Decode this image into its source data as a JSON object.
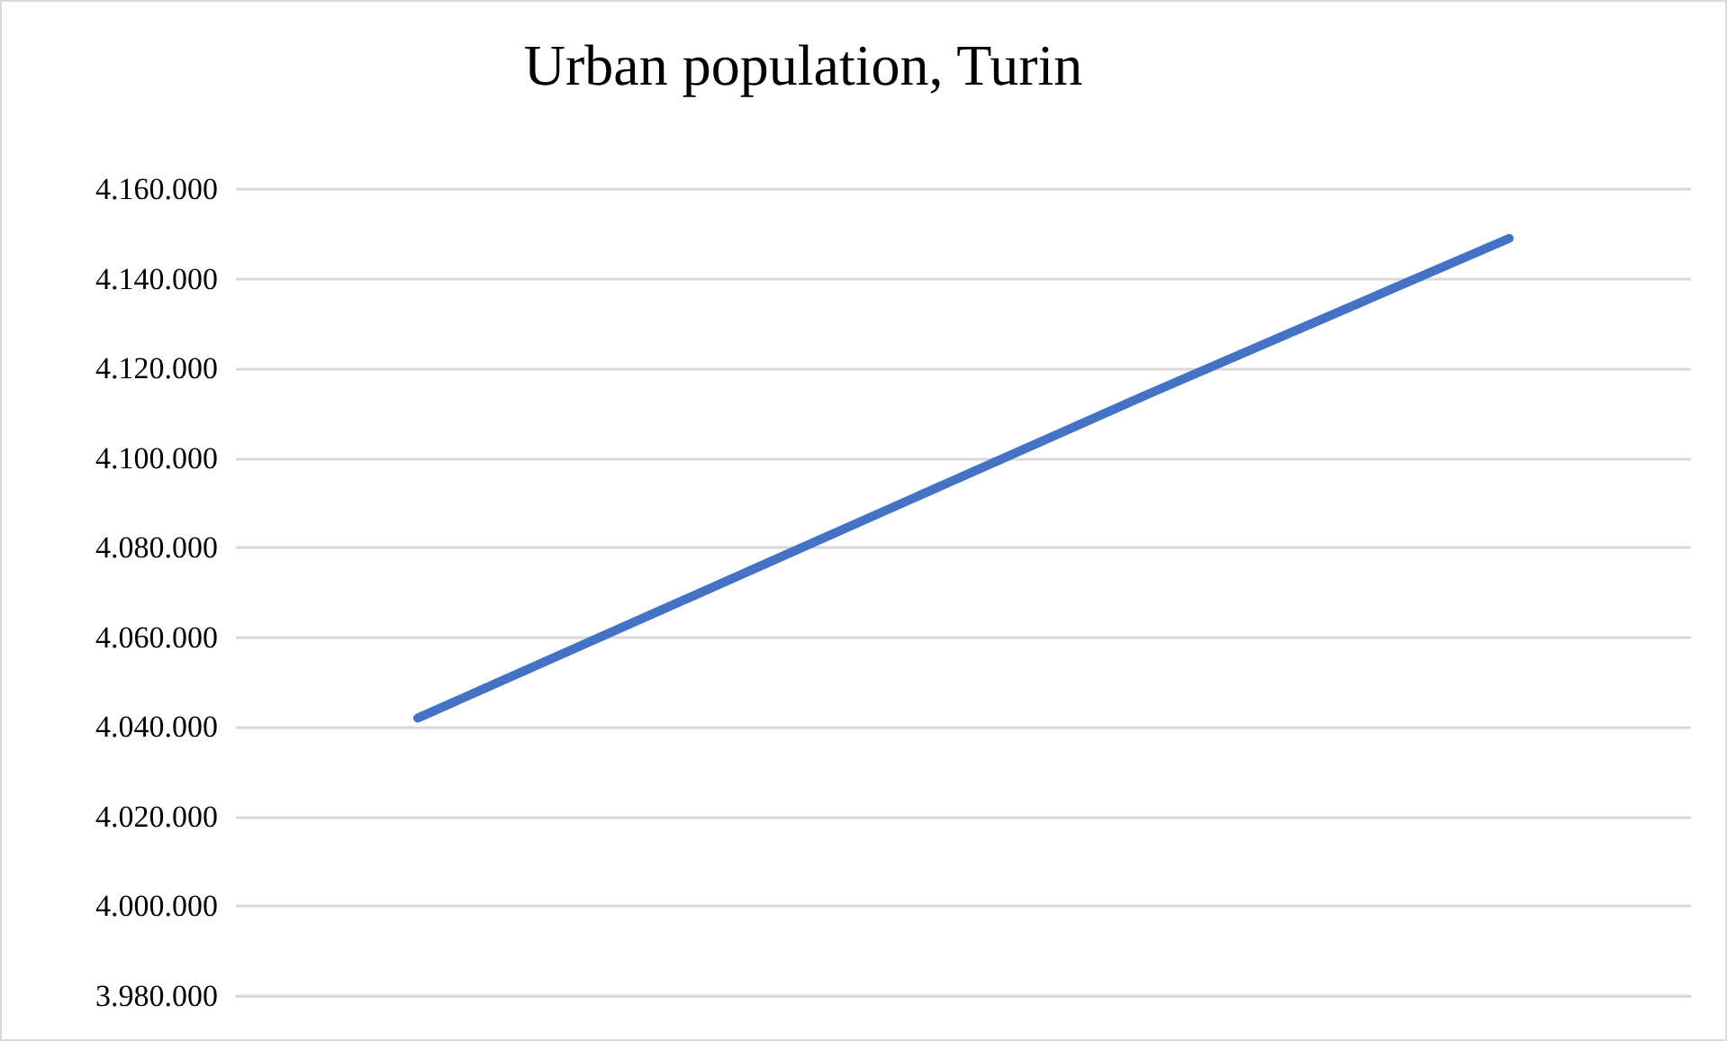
{
  "chart_data": {
    "type": "line",
    "title": "Urban population, Turin",
    "categories": [
      null,
      null,
      null,
      null
    ],
    "series": [
      {
        "color": "#4472c4",
        "values": [
          4042000,
          4078000,
          4114000,
          4149000
        ]
      }
    ],
    "ylim": [
      3980000,
      4160000
    ],
    "yticks": [
      {
        "value": 3980000,
        "label": "3.980.000"
      },
      {
        "value": 4000000,
        "label": "4.000.000"
      },
      {
        "value": 4020000,
        "label": "4.020.000"
      },
      {
        "value": 4040000,
        "label": "4.040.000"
      },
      {
        "value": 4060000,
        "label": "4.060.000"
      },
      {
        "value": 4080000,
        "label": "4.080.000"
      },
      {
        "value": 4100000,
        "label": "4.100.000"
      },
      {
        "value": 4120000,
        "label": "4.120.000"
      },
      {
        "value": 4140000,
        "label": "4.140.000"
      },
      {
        "value": 4160000,
        "label": "4.160.000"
      }
    ],
    "grid": "y",
    "marker": "none",
    "line_style": "solid"
  }
}
